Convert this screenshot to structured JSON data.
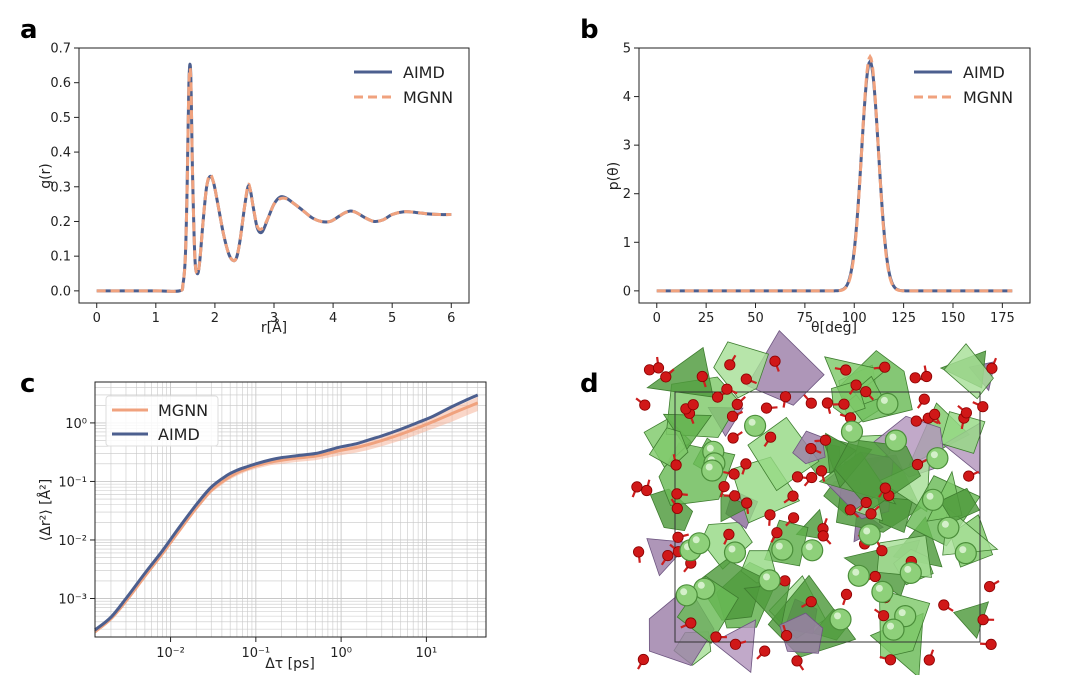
{
  "colors": {
    "aimd": "#4c5f8f",
    "mgnn": "#f0a27e",
    "mgnn_band": "#f5b59a",
    "grid": "#c8c8c8",
    "axis": "#222222"
  },
  "panels": {
    "a": {
      "letter": "a"
    },
    "b": {
      "letter": "b"
    },
    "c": {
      "letter": "c"
    },
    "d": {
      "letter": "d"
    }
  },
  "chart_data": [
    {
      "panel": "a",
      "type": "line",
      "xlabel": "r[Å]",
      "ylabel": "g(r)",
      "xlim": [
        -0.3,
        6.3
      ],
      "ylim": [
        -0.035,
        0.7
      ],
      "xticks": [
        0,
        1,
        2,
        3,
        4,
        5,
        6
      ],
      "yticks": [
        0.0,
        0.1,
        0.2,
        0.3,
        0.4,
        0.5,
        0.6,
        0.7
      ],
      "ytick_labels": [
        "0.0",
        "0.1",
        "0.2",
        "0.3",
        "0.4",
        "0.5",
        "0.6",
        "0.7"
      ],
      "legend_position": "top-right",
      "series": [
        {
          "name": "AIMD",
          "style": "solid",
          "x": [
            0,
            1.0,
            1.4,
            1.46,
            1.5,
            1.53,
            1.56,
            1.59,
            1.62,
            1.66,
            1.7,
            1.74,
            1.8,
            1.86,
            1.92,
            1.98,
            2.05,
            2.15,
            2.25,
            2.35,
            2.42,
            2.5,
            2.56,
            2.6,
            2.65,
            2.72,
            2.8,
            2.9,
            3.0,
            3.1,
            3.2,
            3.35,
            3.5,
            3.65,
            3.8,
            3.95,
            4.1,
            4.2,
            4.3,
            4.4,
            4.55,
            4.7,
            4.85,
            5.0,
            5.2,
            5.4,
            5.6,
            5.8,
            6.0
          ],
          "y": [
            0,
            0,
            0.0,
            0.02,
            0.1,
            0.3,
            0.6,
            0.63,
            0.35,
            0.1,
            0.05,
            0.08,
            0.2,
            0.3,
            0.33,
            0.31,
            0.25,
            0.16,
            0.1,
            0.09,
            0.14,
            0.24,
            0.3,
            0.29,
            0.24,
            0.18,
            0.17,
            0.21,
            0.25,
            0.27,
            0.268,
            0.25,
            0.23,
            0.21,
            0.2,
            0.2,
            0.215,
            0.225,
            0.23,
            0.225,
            0.21,
            0.2,
            0.205,
            0.22,
            0.228,
            0.226,
            0.222,
            0.22,
            0.22
          ]
        },
        {
          "name": "MGNN",
          "style": "dashed",
          "x": [
            0,
            1.0,
            1.4,
            1.46,
            1.5,
            1.53,
            1.56,
            1.59,
            1.62,
            1.66,
            1.7,
            1.74,
            1.8,
            1.86,
            1.92,
            1.98,
            2.05,
            2.15,
            2.25,
            2.35,
            2.42,
            2.5,
            2.56,
            2.6,
            2.65,
            2.72,
            2.8,
            2.9,
            3.0,
            3.1,
            3.2,
            3.35,
            3.5,
            3.65,
            3.8,
            3.95,
            4.1,
            4.2,
            4.3,
            4.4,
            4.55,
            4.7,
            4.85,
            5.0,
            5.2,
            5.4,
            5.6,
            5.8,
            6.0
          ],
          "y": [
            0,
            0,
            0.0,
            0.02,
            0.1,
            0.3,
            0.59,
            0.62,
            0.35,
            0.1,
            0.05,
            0.08,
            0.2,
            0.3,
            0.335,
            0.31,
            0.25,
            0.16,
            0.1,
            0.09,
            0.14,
            0.24,
            0.305,
            0.29,
            0.24,
            0.185,
            0.18,
            0.21,
            0.25,
            0.265,
            0.266,
            0.25,
            0.23,
            0.21,
            0.2,
            0.2,
            0.215,
            0.225,
            0.23,
            0.225,
            0.21,
            0.2,
            0.205,
            0.22,
            0.228,
            0.226,
            0.222,
            0.22,
            0.22
          ]
        }
      ]
    },
    {
      "panel": "b",
      "type": "line",
      "xlabel": "θ[deg]",
      "ylabel": "p(θ)",
      "xlim": [
        -9,
        189
      ],
      "ylim": [
        -0.25,
        5
      ],
      "xticks": [
        0,
        25,
        50,
        75,
        100,
        125,
        150,
        175
      ],
      "yticks": [
        0,
        1,
        2,
        3,
        4,
        5
      ],
      "legend_position": "top-right",
      "series": [
        {
          "name": "AIMD",
          "style": "solid",
          "peak_center": 108,
          "peak_height": 4.72,
          "peak_sigma": 4.3
        },
        {
          "name": "MGNN",
          "style": "dashed",
          "peak_center": 108,
          "peak_height": 4.82,
          "peak_sigma": 4.2
        }
      ]
    },
    {
      "panel": "c",
      "type": "line",
      "xscale": "log",
      "yscale": "log",
      "grid": true,
      "xlabel": "Δτ [ps]",
      "ylabel": "⟨Δr²⟩ [Å²]",
      "xlim": [
        0.0013,
        50
      ],
      "ylim": [
        0.00022,
        5
      ],
      "xticks": [
        0.01,
        0.1,
        1,
        10
      ],
      "xtick_labels": [
        "10⁻²",
        "10⁻¹",
        "10⁰",
        "10¹"
      ],
      "yticks": [
        0.001,
        0.01,
        0.1,
        1
      ],
      "ytick_labels": [
        "10⁻³",
        "10⁻²",
        "10⁻¹",
        "10⁰"
      ],
      "legend_position": "top-left",
      "series": [
        {
          "name": "MGNN",
          "style": "solid",
          "band": true,
          "x": [
            0.0013,
            0.002,
            0.003,
            0.005,
            0.008,
            0.012,
            0.02,
            0.03,
            0.045,
            0.06,
            0.08,
            0.1,
            0.15,
            0.2,
            0.3,
            0.5,
            0.7,
            1,
            1.5,
            2,
            3,
            5,
            8,
            12,
            20,
            30,
            40
          ],
          "y": [
            0.00027,
            0.00045,
            0.0009,
            0.0024,
            0.0058,
            0.013,
            0.035,
            0.07,
            0.11,
            0.14,
            0.165,
            0.185,
            0.215,
            0.23,
            0.25,
            0.27,
            0.3,
            0.34,
            0.38,
            0.42,
            0.5,
            0.64,
            0.83,
            1.05,
            1.45,
            1.85,
            2.2
          ],
          "band_low": [
            0.00025,
            0.00042,
            0.00085,
            0.0022,
            0.0054,
            0.012,
            0.032,
            0.064,
            0.1,
            0.125,
            0.15,
            0.165,
            0.19,
            0.2,
            0.215,
            0.23,
            0.255,
            0.28,
            0.31,
            0.34,
            0.4,
            0.5,
            0.64,
            0.8,
            1.05,
            1.35,
            1.6
          ],
          "band_high": [
            0.00029,
            0.00049,
            0.00096,
            0.0026,
            0.0062,
            0.014,
            0.038,
            0.076,
            0.12,
            0.15,
            0.18,
            0.2,
            0.235,
            0.25,
            0.27,
            0.3,
            0.34,
            0.39,
            0.45,
            0.5,
            0.6,
            0.78,
            1.0,
            1.3,
            1.8,
            2.3,
            2.8
          ]
        },
        {
          "name": "AIMD",
          "style": "solid",
          "x": [
            0.0013,
            0.002,
            0.003,
            0.005,
            0.008,
            0.012,
            0.02,
            0.03,
            0.045,
            0.06,
            0.08,
            0.1,
            0.15,
            0.2,
            0.3,
            0.5,
            0.7,
            1,
            1.5,
            2,
            3,
            5,
            8,
            12,
            20,
            30,
            40
          ],
          "y": [
            0.00029,
            0.00048,
            0.001,
            0.0027,
            0.0065,
            0.0148,
            0.04,
            0.08,
            0.125,
            0.155,
            0.18,
            0.2,
            0.235,
            0.255,
            0.275,
            0.3,
            0.34,
            0.39,
            0.44,
            0.5,
            0.6,
            0.78,
            1.02,
            1.3,
            1.9,
            2.5,
            3.0
          ]
        }
      ]
    }
  ]
}
